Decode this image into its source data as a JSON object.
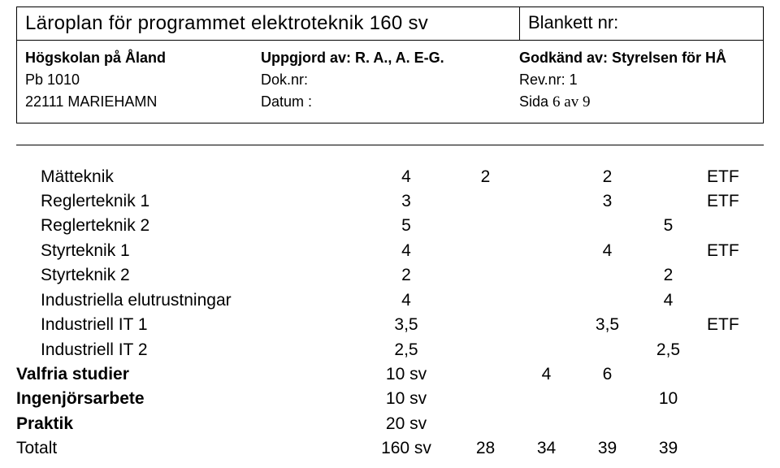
{
  "header": {
    "title": "Läroplan för programmet elektroteknik 160 sv",
    "blankett_label": "Blankett nr:",
    "col1": {
      "line1": "Högskolan på Åland",
      "line2": "Pb 1010",
      "line3": "22111 MARIEHAMN"
    },
    "col2": {
      "line1": "Uppgjord av: R. A., A. E-G.",
      "line2": "Dok.nr:",
      "line3": "Datum :"
    },
    "col3": {
      "line1": "Godkänd av: Styrelsen för HÅ",
      "line2": "Rev.nr: 1",
      "line3_prefix": "Sida ",
      "line3_page": "6 av 9"
    }
  },
  "rows": [
    {
      "name": "Mätteknik",
      "indent": true,
      "v1": "4",
      "v2": "2",
      "v4": "2",
      "tag": "ETF"
    },
    {
      "name": "Reglerteknik 1",
      "indent": true,
      "v1": "3",
      "v4": "3",
      "tag": "ETF"
    },
    {
      "name": "Reglerteknik 2",
      "indent": true,
      "v1": "5",
      "v5": "5"
    },
    {
      "name": "Styrteknik 1",
      "indent": true,
      "v1": "4",
      "v4": "4",
      "tag": "ETF"
    },
    {
      "name": "Styrteknik 2",
      "indent": true,
      "v1": "2",
      "v5": "2"
    },
    {
      "name": "Industriella elutrustningar",
      "indent": true,
      "v1": "4",
      "v5": "4"
    },
    {
      "name": "Industriell IT 1",
      "indent": true,
      "v1": "3,5",
      "v4": "3,5",
      "tag": "ETF"
    },
    {
      "name": "Industriell IT 2",
      "indent": true,
      "v1": "2,5",
      "v5": "2,5"
    },
    {
      "name": "Valfria studier",
      "indent": false,
      "bold": true,
      "v1": "10 sv",
      "v3": "4",
      "v4": "6"
    },
    {
      "name": "Ingenjörsarbete",
      "indent": false,
      "bold": true,
      "v1": "10 sv",
      "v5": "10"
    },
    {
      "name": "Praktik",
      "indent": false,
      "bold": true,
      "v1": "20 sv"
    },
    {
      "name": "Totalt",
      "indent": false,
      "bold": false,
      "v1": "160 sv",
      "v2": "28",
      "v3": "34",
      "v4": "39",
      "v5": "39"
    }
  ]
}
